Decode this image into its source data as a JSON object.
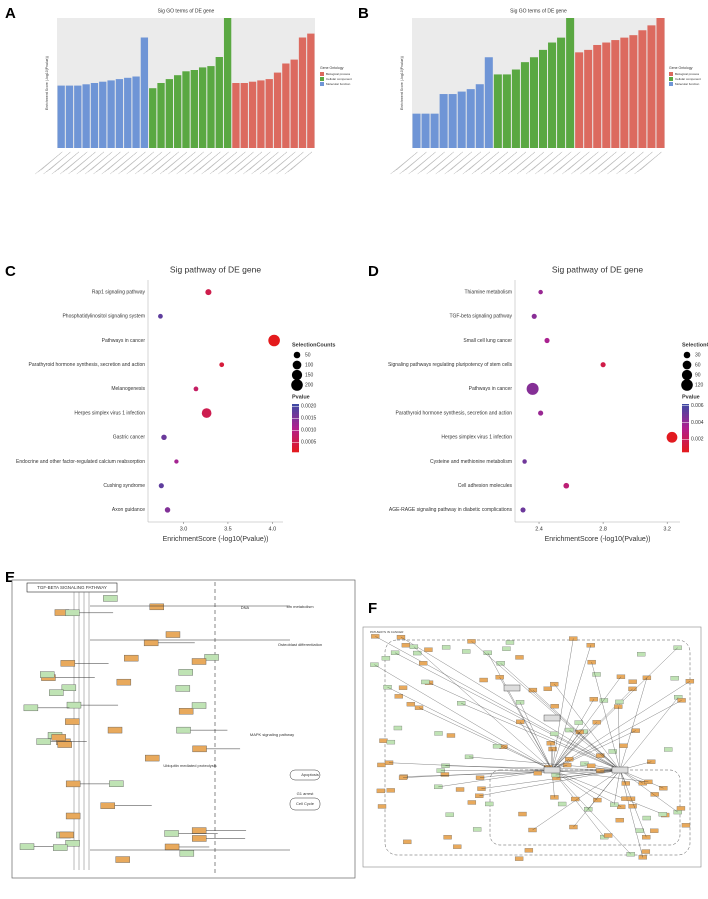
{
  "chart_data": [
    {
      "type": "bar",
      "panel": "A",
      "title": "Sig GO terms of DE gene",
      "ylabel": "Enrichment Score (-log10(Pvalue))",
      "legend_title": "Gene Ontology",
      "ylim": [
        0,
        10
      ],
      "series": [
        {
          "name": "Molecular function",
          "color": "#6f95d6",
          "values": [
            4.8,
            4.8,
            4.8,
            4.9,
            5.0,
            5.1,
            5.2,
            5.3,
            5.4,
            5.5,
            8.5
          ]
        },
        {
          "name": "Cellular component",
          "color": "#5aa842",
          "values": [
            4.6,
            5.0,
            5.3,
            5.6,
            5.9,
            6.0,
            6.2,
            6.3,
            7.0,
            10.0
          ]
        },
        {
          "name": "Biological process",
          "color": "#dc6a5f",
          "values": [
            5.0,
            5.0,
            5.1,
            5.2,
            5.3,
            5.8,
            6.5,
            6.8,
            8.5,
            8.8
          ]
        }
      ],
      "legend_order": [
        2,
        1,
        0
      ]
    },
    {
      "type": "bar",
      "panel": "B",
      "title": "Sig GO terms of DE gene",
      "ylabel": "Enrichment Score (-log10(Pvalue))",
      "legend_title": "Gene Ontology",
      "ylim": [
        0,
        5.3
      ],
      "series": [
        {
          "name": "Molecular function",
          "color": "#6f95d6",
          "values": [
            1.4,
            1.4,
            1.4,
            2.2,
            2.2,
            2.3,
            2.4,
            2.6,
            3.7
          ]
        },
        {
          "name": "Cellular component",
          "color": "#5aa842",
          "values": [
            3.0,
            3.0,
            3.2,
            3.5,
            3.7,
            4.0,
            4.3,
            4.5,
            5.3
          ]
        },
        {
          "name": "Biological process",
          "color": "#dc6a5f",
          "values": [
            3.9,
            4.0,
            4.2,
            4.3,
            4.4,
            4.5,
            4.6,
            4.8,
            5.0,
            5.3
          ]
        }
      ],
      "legend_order": [
        2,
        1,
        0
      ]
    },
    {
      "type": "dot",
      "panel": "C",
      "title": "Sig pathway of DE gene",
      "xlabel": "EnrichmentScore (-log10(Pvalue))",
      "categories": [
        "Rap1 signaling pathway",
        "Phosphatidylinositol signaling system",
        "Pathways in cancer",
        "Parathyroid hormone synthesis, secretion and action",
        "Melanogenesis",
        "Herpes simplex virus 1 infection",
        "Gastric cancer",
        "Endocrine and other factor-regulated calcium reabsorption",
        "Cushing syndrome",
        "Axon guidance"
      ],
      "x": [
        3.28,
        2.74,
        4.02,
        3.43,
        3.14,
        3.26,
        2.78,
        2.92,
        2.75,
        2.82
      ],
      "sizes": [
        40,
        20,
        200,
        20,
        20,
        130,
        30,
        15,
        25,
        30
      ],
      "pvalues": [
        0.00052,
        0.0018,
        9.5e-05,
        0.00037,
        0.00072,
        0.00055,
        0.0017,
        0.0012,
        0.0018,
        0.0015
      ],
      "xlim": [
        2.6,
        4.12
      ],
      "xticks": [
        {
          "value": 3,
          "label": "3.0"
        },
        3.5,
        {
          "value": 4,
          "label": "4.0"
        }
      ],
      "size_title": "SelectionCounts",
      "size_ticks": [
        50,
        100,
        150,
        200
      ],
      "color_title": "Pvalue",
      "clim": [
        0.0001,
        0.0021
      ],
      "cticks": [
        {
          "value": 0.002,
          "label": "0.0020"
        },
        0.0015,
        {
          "value": 0.001,
          "label": "0.0010"
        },
        0.0005
      ]
    },
    {
      "type": "dot",
      "panel": "D",
      "title": "Sig pathway of DE gene",
      "xlabel": "EnrichmentScore (-log10(Pvalue))",
      "categories": [
        "Thiamine metabolism",
        "TGF-beta signaling pathway",
        "Small cell lung cancer",
        "Signaling pathways regulating pluripotency of stem cells",
        "Pathways in cancer",
        "Parathyroid hormone synthesis, secretion and action",
        "Herpes simplex virus 1 infection",
        "Cysteine and methionine metabolism",
        "Cell adhesion molecules",
        "AGE-RAGE signaling pathway in diabetic complications"
      ],
      "x": [
        2.41,
        2.37,
        2.45,
        2.8,
        2.36,
        2.41,
        3.23,
        2.31,
        2.57,
        2.3
      ],
      "sizes": [
        10,
        15,
        15,
        15,
        130,
        15,
        100,
        10,
        20,
        15
      ],
      "pvalues": [
        0.0039,
        0.0043,
        0.0035,
        0.0016,
        0.0044,
        0.0039,
        0.0006,
        0.0049,
        0.0027,
        0.005
      ],
      "xlim": [
        2.25,
        3.28
      ],
      "xticks": [
        2.4,
        2.8,
        3.2
      ],
      "size_title": "SelectionCounts",
      "size_ticks": [
        30,
        60,
        90,
        120
      ],
      "color_title": "Pvalue",
      "clim": [
        0.0005,
        0.0062
      ],
      "cticks": [
        0.006,
        0.004,
        0.002
      ]
    }
  ],
  "diagrams": [
    {
      "panel": "E",
      "title": "TGF-BETA SIGNALING PATHWAY",
      "labels": [
        "Ion metabolism",
        "DNA",
        "Osteoblast differentiation",
        "MAPK signaling pathway",
        "Ubiquitin mediated proteolysis",
        "Apoptosis",
        "G1 arrest",
        "Cell Cycle"
      ]
    },
    {
      "panel": "F",
      "title": "PATHWAYS IN CANCER"
    }
  ]
}
